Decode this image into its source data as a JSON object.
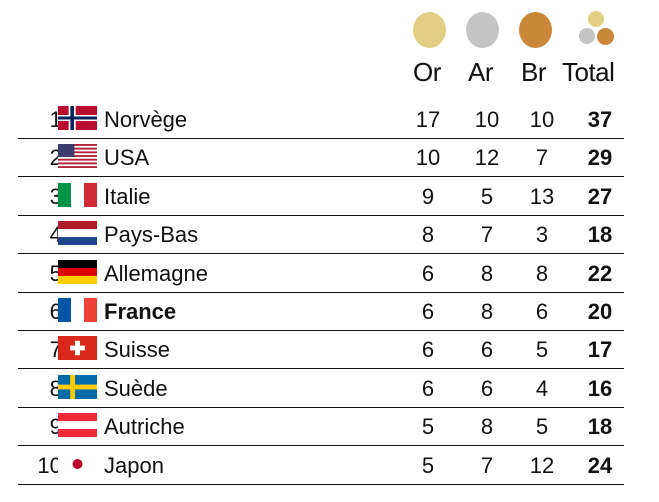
{
  "header": {
    "gold_label": "Or",
    "silver_label": "Ar",
    "bronze_label": "Br",
    "total_label": "Total",
    "medal_colors": {
      "gold": "#e3cf84",
      "silver": "#c4c4c4",
      "bronze": "#c9873a"
    }
  },
  "rows": [
    {
      "rank": "1.",
      "flag": "norway-flag",
      "country": "Norvège",
      "gold": "17",
      "silver": "10",
      "bronze": "10",
      "total": "37"
    },
    {
      "rank": "2.",
      "flag": "usa-flag",
      "country": "USA",
      "gold": "10",
      "silver": "12",
      "bronze": "7",
      "total": "29"
    },
    {
      "rank": "3.",
      "flag": "italy-flag",
      "country": "Italie",
      "gold": "9",
      "silver": "5",
      "bronze": "13",
      "total": "27"
    },
    {
      "rank": "4.",
      "flag": "netherlands-flag",
      "country": "Pays-Bas",
      "gold": "8",
      "silver": "7",
      "bronze": "3",
      "total": "18"
    },
    {
      "rank": "5.",
      "flag": "germany-flag",
      "country": "Allemagne",
      "gold": "6",
      "silver": "8",
      "bronze": "8",
      "total": "22"
    },
    {
      "rank": "6.",
      "flag": "france-flag",
      "country": "France",
      "gold": "6",
      "silver": "8",
      "bronze": "6",
      "total": "20"
    },
    {
      "rank": "7.",
      "flag": "switzerland-flag",
      "country": "Suisse",
      "gold": "6",
      "silver": "6",
      "bronze": "5",
      "total": "17"
    },
    {
      "rank": "8.",
      "flag": "sweden-flag",
      "country": "Suède",
      "gold": "6",
      "silver": "6",
      "bronze": "4",
      "total": "16"
    },
    {
      "rank": "9.",
      "flag": "austria-flag",
      "country": "Autriche",
      "gold": "5",
      "silver": "8",
      "bronze": "5",
      "total": "18"
    },
    {
      "rank": "10.",
      "flag": "japan-flag",
      "country": "Japon",
      "gold": "5",
      "silver": "7",
      "bronze": "12",
      "total": "24"
    }
  ],
  "highlighted_country": "France"
}
